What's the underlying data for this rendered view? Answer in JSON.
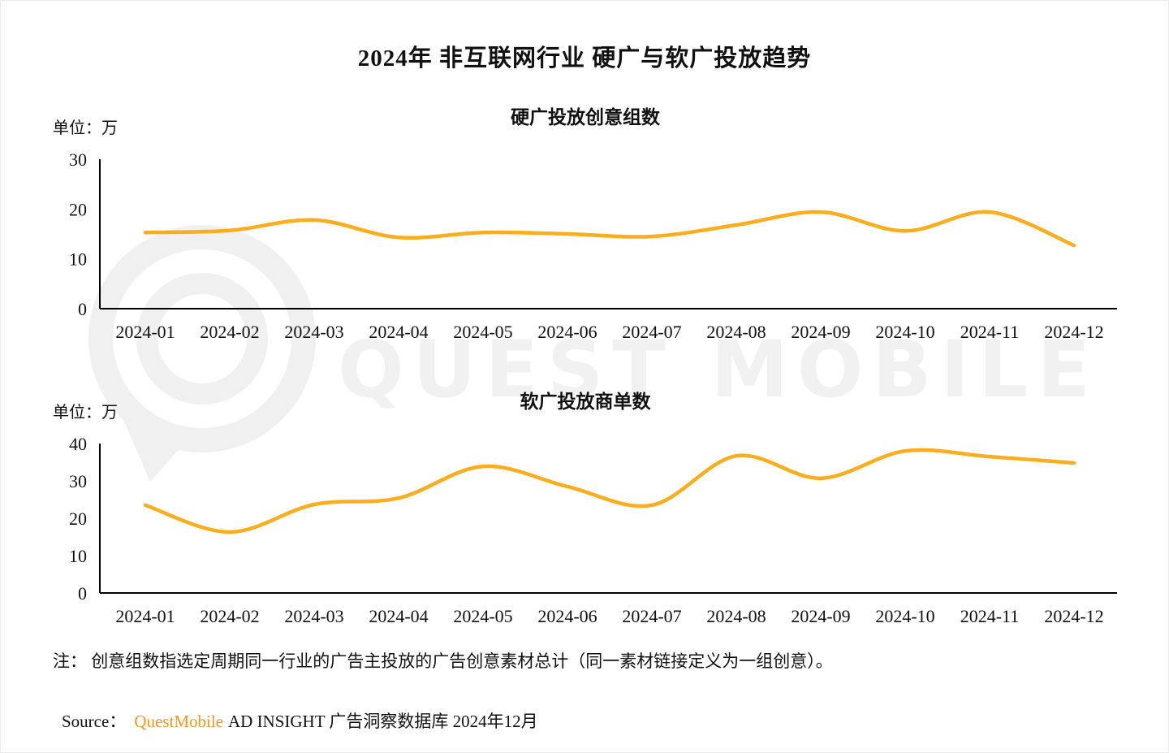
{
  "page": {
    "title": "2024年 非互联网行业 硬广与软广投放趋势",
    "note": "注： 创意组数指选定周期同一行业的广告主投放的广告创意素材总计（同一素材链接定义为一组创意）。",
    "source_prefix": "Source：",
    "source_brand": "QuestMobile",
    "source_suffix": "AD INSIGHT 广告洞察数据库 2024年12月",
    "watermark_text": "QUEST MOBILE",
    "colors": {
      "line": "#FBAD1B",
      "brand_orange": "#F7941E",
      "axis": "#000000",
      "watermark": "#f1f1f1"
    }
  },
  "chart_data": [
    {
      "type": "line",
      "title": "硬广投放创意组数",
      "unit_label": "单位：万",
      "categories": [
        "2024-01",
        "2024-02",
        "2024-03",
        "2024-04",
        "2024-05",
        "2024-06",
        "2024-07",
        "2024-08",
        "2024-09",
        "2024-10",
        "2024-11",
        "2024-12"
      ],
      "series": [
        {
          "name": "硬广投放创意组数",
          "values": [
            15.3,
            15.7,
            17.8,
            14.3,
            15.3,
            15.0,
            14.5,
            16.8,
            19.4,
            15.6,
            19.4,
            12.7
          ]
        }
      ],
      "ylim": [
        0,
        30
      ],
      "yticks": [
        0,
        10,
        20,
        30
      ],
      "line_color": "#FBAD1B",
      "grid": false,
      "legend": "none"
    },
    {
      "type": "line",
      "title": "软广投放商单数",
      "unit_label": "单位：万",
      "categories": [
        "2024-01",
        "2024-02",
        "2024-03",
        "2024-04",
        "2024-05",
        "2024-06",
        "2024-07",
        "2024-08",
        "2024-09",
        "2024-10",
        "2024-11",
        "2024-12"
      ],
      "series": [
        {
          "name": "软广投放商单数",
          "values": [
            23.5,
            16.3,
            23.7,
            25.4,
            33.9,
            28.5,
            23.5,
            36.7,
            30.7,
            38.0,
            36.5,
            34.8
          ]
        }
      ],
      "ylim": [
        0,
        40
      ],
      "yticks": [
        0,
        10,
        20,
        30,
        40
      ],
      "line_color": "#FBAD1B",
      "grid": false,
      "legend": "none"
    }
  ]
}
